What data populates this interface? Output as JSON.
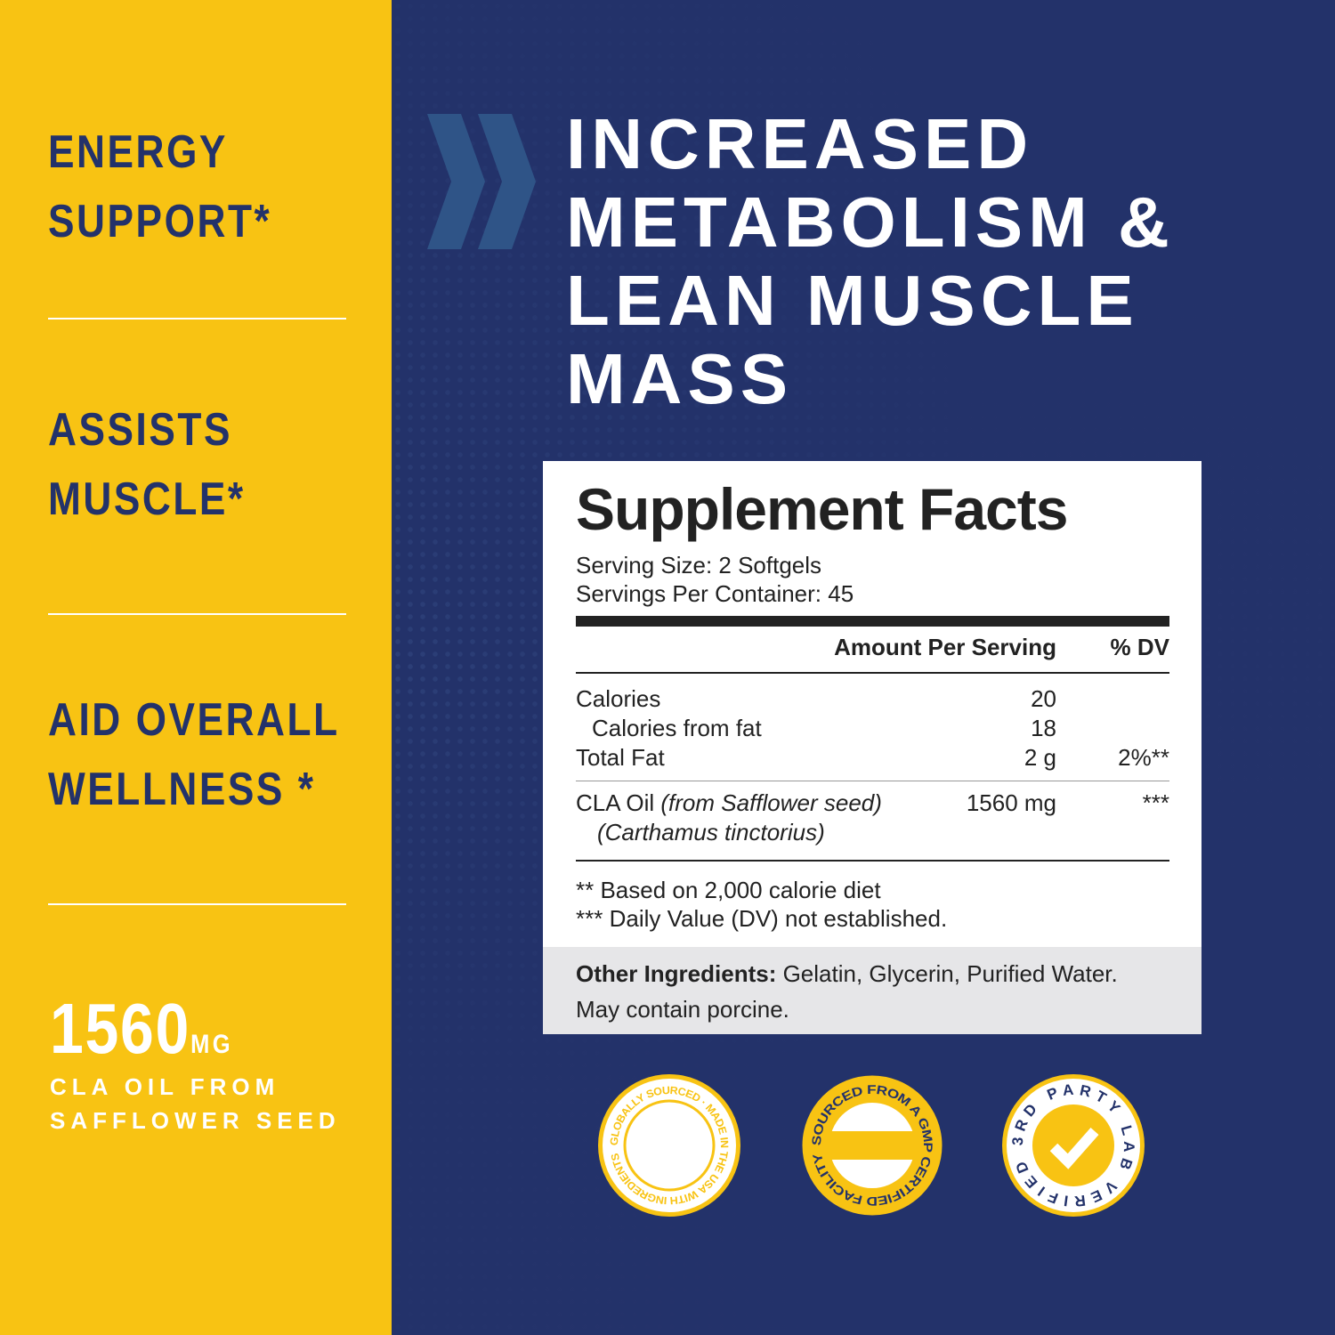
{
  "colors": {
    "yellow": "#f8c313",
    "navy": "#23326a"
  },
  "features": [
    {
      "line1": "Energy",
      "line2": "Support*"
    },
    {
      "line1": "Assists",
      "line2": "Muscle*"
    },
    {
      "line1": "Aid Overall",
      "line2": "Wellness *"
    }
  ],
  "dose": {
    "amount": "1560",
    "unit": "MG",
    "desc1": "CLA OIL FROM",
    "desc2": "SAFFLOWER SEED"
  },
  "headline": [
    "INCREASED",
    "METABOLISM &",
    "LEAN MUSCLE",
    "MASS"
  ],
  "facts": {
    "title": "Supplement Facts",
    "serving_size": "Serving Size: 2 Softgels",
    "servings": "Servings Per Container: 45",
    "col_amount": "Amount Per Serving",
    "col_dv": "% DV",
    "rows": [
      {
        "name": "Calories",
        "amount": "20",
        "dv": ""
      },
      {
        "name": "Calories from fat",
        "amount": "18",
        "dv": ""
      },
      {
        "name": "Total Fat",
        "amount": "2 g",
        "dv": "2%**"
      }
    ],
    "cla": {
      "name": "CLA Oil",
      "source": "(from Safflower seed)",
      "latin": "(Carthamus tinctorius)",
      "amount": "1560 mg",
      "dv": "***"
    },
    "note1": "** Based on 2,000 calorie diet",
    "note2": "*** Daily Value (DV) not established.",
    "other_label": "Other Ingredients:",
    "other": " Gelatin, Glycerin, Purified Water.",
    "other2": "May contain porcine."
  },
  "badges": [
    {
      "icon": "made-in-usa-seal",
      "text": "GLOBALLY SOURCED · MADE IN THE USA WITH INGREDIENTS"
    },
    {
      "icon": "gmp-seal",
      "text": "SOURCED FROM A GMP CERTIFIED FACILITY"
    },
    {
      "icon": "lab-verified-seal",
      "text": "3RD PARTY LAB VERIFIED"
    }
  ]
}
